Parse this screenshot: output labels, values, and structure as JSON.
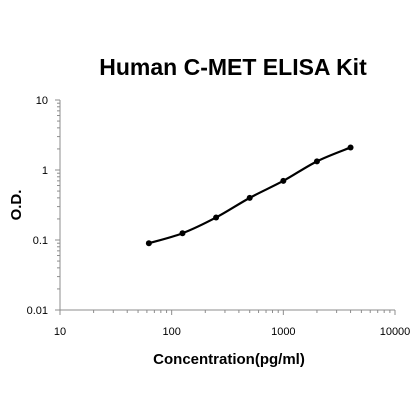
{
  "chart_data": {
    "type": "line",
    "title": "Human C-MET ELISA Kit",
    "xlabel": "Concentration(pg/ml)",
    "ylabel": "O.D.",
    "x_scale": "log",
    "y_scale": "log",
    "xlim": [
      10,
      10000
    ],
    "ylim": [
      0.01,
      10
    ],
    "x_ticks": [
      "10",
      "100",
      "1000",
      "10000"
    ],
    "y_ticks": [
      "10",
      "1",
      "0.1",
      "0.01"
    ],
    "grid": false,
    "series": [
      {
        "x": [
          62.5,
          125,
          250,
          500,
          1000,
          2000,
          4000
        ],
        "y": [
          0.09,
          0.125,
          0.21,
          0.4,
          0.7,
          1.33,
          2.1
        ],
        "color": "#000000",
        "marker": "circle",
        "smooth": true
      }
    ]
  }
}
